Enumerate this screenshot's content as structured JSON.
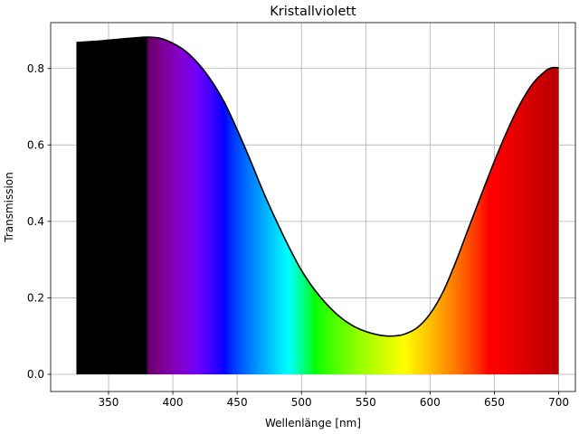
{
  "chart_data": {
    "type": "area",
    "title": "Kristallviolett",
    "xlabel": "Wellenlänge [nm]",
    "ylabel": "Transmission",
    "xlim": [
      305,
      713
    ],
    "ylim": [
      -0.045,
      0.92
    ],
    "xticks": [
      350,
      400,
      450,
      500,
      550,
      600,
      650,
      700
    ],
    "yticks": [
      0.0,
      0.2,
      0.4,
      0.6,
      0.8
    ],
    "ytick_labels": [
      "0.0",
      "0.2",
      "0.4",
      "0.6",
      "0.8"
    ],
    "grid": true,
    "fill": "visible spectrum color gradient",
    "line_color": "#000000",
    "series": [
      {
        "x": [
          325,
          340,
          350,
          360,
          370,
          380,
          390,
          400,
          410,
          420,
          430,
          440,
          450,
          460,
          470,
          480,
          490,
          500,
          510,
          520,
          530,
          540,
          550,
          560,
          570,
          580,
          590,
          600,
          610,
          620,
          630,
          640,
          650,
          660,
          670,
          680,
          690,
          695,
          700
        ],
        "values": [
          0.868,
          0.871,
          0.874,
          0.877,
          0.88,
          0.882,
          0.879,
          0.866,
          0.845,
          0.812,
          0.768,
          0.712,
          0.64,
          0.562,
          0.48,
          0.405,
          0.335,
          0.272,
          0.222,
          0.182,
          0.15,
          0.127,
          0.112,
          0.103,
          0.1,
          0.105,
          0.122,
          0.158,
          0.215,
          0.294,
          0.383,
          0.471,
          0.557,
          0.637,
          0.707,
          0.761,
          0.794,
          0.802,
          0.802
        ]
      }
    ]
  }
}
